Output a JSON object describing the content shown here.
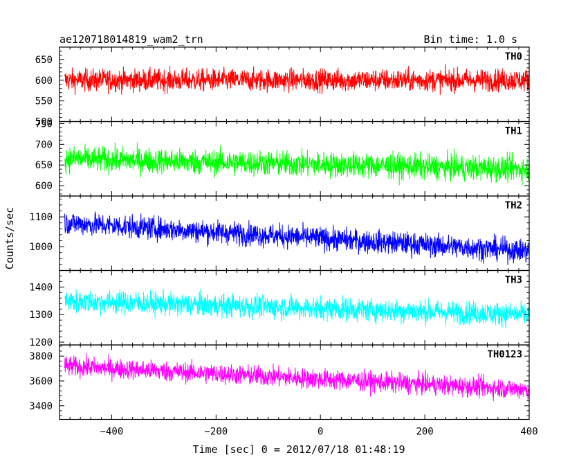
{
  "header": {
    "title": "ae120718014819_wam2_trn",
    "bin_time": "Bin time: 1.0 s"
  },
  "chart_data": {
    "type": "line",
    "xlabel": "Time [sec] 0 = 2012/07/18 01:48:19",
    "ylabel": "Counts/sec",
    "xlim": [
      -500,
      400
    ],
    "x_ticks": [
      -400,
      -200,
      0,
      200,
      400
    ],
    "x_minor_step": 20,
    "bin_time_s": 1.0,
    "panels": [
      {
        "name": "TH0",
        "color": "#ff0000",
        "ylim": [
          500,
          680
        ],
        "y_ticks": [
          500,
          550,
          600,
          650
        ],
        "mean_start": 600,
        "mean_end": 600,
        "spread": 35
      },
      {
        "name": "TH1",
        "color": "#00ff00",
        "ylim": [
          575,
          755
        ],
        "y_ticks": [
          600,
          650,
          700,
          750
        ],
        "mean_start": 665,
        "mean_end": 640,
        "spread": 40
      },
      {
        "name": "TH2",
        "color": "#0000ff",
        "ylim": [
          920,
          1170
        ],
        "y_ticks": [
          1000,
          1100
        ],
        "mean_start": 1080,
        "mean_end": 985,
        "spread": 50
      },
      {
        "name": "TH3",
        "color": "#00ffff",
        "ylim": [
          1190,
          1460
        ],
        "y_ticks": [
          1200,
          1300,
          1400
        ],
        "mean_start": 1350,
        "mean_end": 1300,
        "spread": 55
      },
      {
        "name": "TH0123",
        "color": "#ff00ff",
        "ylim": [
          3290,
          3890
        ],
        "y_ticks": [
          3400,
          3600,
          3800
        ],
        "mean_start": 3720,
        "mean_end": 3530,
        "spread": 105
      }
    ]
  }
}
